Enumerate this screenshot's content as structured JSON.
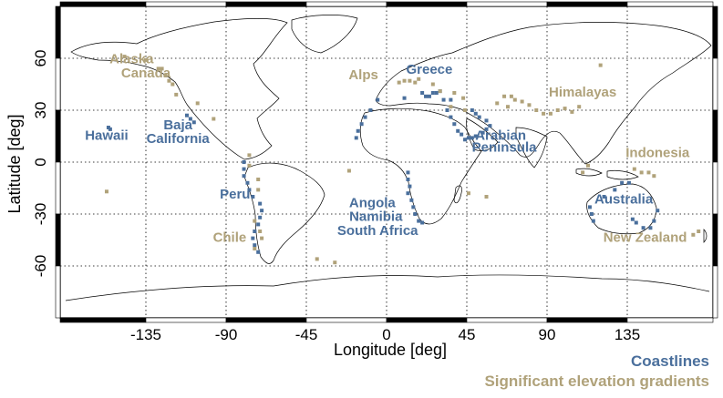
{
  "chart_data": {
    "type": "map",
    "projection": "equirectangular",
    "xlabel": "Longitude [deg]",
    "ylabel": "Latitude [deg]",
    "xlim": [
      -180,
      180
    ],
    "ylim": [
      -90,
      90
    ],
    "xticks": [
      -135,
      -90,
      -45,
      0,
      45,
      90,
      135
    ],
    "yticks": [
      60,
      30,
      0,
      -30,
      -60
    ],
    "x_tick_labels": [
      "-135",
      "-90",
      "-45",
      "0",
      "45",
      "90",
      "135"
    ],
    "y_tick_labels": [
      "60",
      "30",
      "0",
      "-30",
      "-60"
    ],
    "grid": true,
    "legend_placement": "bottom-right",
    "series": [
      {
        "name": "Coastlines",
        "color": "#4a6f9c",
        "labels": [
          {
            "text": "Greece",
            "lon": 24,
            "lat": 51
          },
          {
            "text": "Hawaii",
            "lon": -157,
            "lat": 13
          },
          {
            "text": "Baja",
            "lon": -117,
            "lat": 19
          },
          {
            "text": "California",
            "lon": -117,
            "lat": 11
          },
          {
            "text": "Arabian",
            "lon": 64,
            "lat": 13
          },
          {
            "text": "Peninsula",
            "lon": 66,
            "lat": 6
          },
          {
            "text": "Peru",
            "lon": -85,
            "lat": -21
          },
          {
            "text": "Angola",
            "lon": -8,
            "lat": -26
          },
          {
            "text": "Namibia",
            "lon": -6,
            "lat": -34
          },
          {
            "text": "South Africa",
            "lon": -5,
            "lat": -42
          },
          {
            "text": "Australia",
            "lon": 133,
            "lat": -24
          }
        ],
        "cells": [
          [
            -156,
            20
          ],
          [
            -155,
            19
          ],
          [
            -112,
            27
          ],
          [
            -110,
            25
          ],
          [
            -108,
            23
          ],
          [
            -80,
            -4
          ],
          [
            -80,
            0
          ],
          [
            -80,
            -8
          ],
          [
            -78,
            -12
          ],
          [
            -77,
            -16
          ],
          [
            -75,
            -20
          ],
          [
            -71,
            -24
          ],
          [
            -70,
            -28
          ],
          [
            -71,
            -32
          ],
          [
            -72,
            -36
          ],
          [
            -74,
            -40
          ],
          [
            -75,
            -44
          ],
          [
            -74,
            -48
          ],
          [
            -72,
            -52
          ],
          [
            -5,
            36
          ],
          [
            -9,
            30
          ],
          [
            -12,
            26
          ],
          [
            -14,
            22
          ],
          [
            -16,
            18
          ],
          [
            -17,
            14
          ],
          [
            10,
            37
          ],
          [
            20,
            40
          ],
          [
            22,
            38
          ],
          [
            24,
            38
          ],
          [
            26,
            40
          ],
          [
            28,
            40
          ],
          [
            30,
            41
          ],
          [
            32,
            36
          ],
          [
            36,
            36
          ],
          [
            34,
            30
          ],
          [
            36,
            26
          ],
          [
            38,
            22
          ],
          [
            40,
            18
          ],
          [
            42,
            16
          ],
          [
            44,
            13
          ],
          [
            46,
            14
          ],
          [
            48,
            14
          ],
          [
            50,
            15
          ],
          [
            54,
            17
          ],
          [
            56,
            19
          ],
          [
            58,
            21
          ],
          [
            56,
            24
          ],
          [
            52,
            26
          ],
          [
            50,
            28
          ],
          [
            48,
            30
          ],
          [
            12,
            -6
          ],
          [
            12,
            -10
          ],
          [
            13,
            -14
          ],
          [
            12,
            -18
          ],
          [
            14,
            -22
          ],
          [
            15,
            -26
          ],
          [
            16,
            -30
          ],
          [
            18,
            -34
          ],
          [
            20,
            -35
          ],
          [
            116,
            -34
          ],
          [
            115,
            -30
          ],
          [
            114,
            -26
          ],
          [
            122,
            -20
          ],
          [
            128,
            -16
          ],
          [
            132,
            -12
          ],
          [
            136,
            -12
          ],
          [
            138,
            -33
          ],
          [
            140,
            -35
          ],
          [
            144,
            -38
          ],
          [
            148,
            -38
          ],
          [
            150,
            -34
          ],
          [
            152,
            -28
          ]
        ]
      },
      {
        "name": "Significant elevation gradients",
        "color": "#b0a27a",
        "labels": [
          {
            "text": "Alaska",
            "lon": -143,
            "lat": 57
          },
          {
            "text": "Canada",
            "lon": -135,
            "lat": 49
          },
          {
            "text": "Alps",
            "lon": -13,
            "lat": 48
          },
          {
            "text": "Himalayas",
            "lon": 110,
            "lat": 38
          },
          {
            "text": "Indonesia",
            "lon": 152,
            "lat": 3
          },
          {
            "text": "Chile",
            "lon": -88,
            "lat": -46
          },
          {
            "text": "New Zealand",
            "lon": 145,
            "lat": -46
          }
        ],
        "cells": [
          [
            -147,
            61
          ],
          [
            -135,
            59
          ],
          [
            -128,
            54
          ],
          [
            -126,
            54
          ],
          [
            -124,
            50
          ],
          [
            -122,
            47
          ],
          [
            -120,
            45
          ],
          [
            -118,
            39
          ],
          [
            -106,
            34
          ],
          [
            -97,
            25
          ],
          [
            -157,
            -17
          ],
          [
            -77,
            4
          ],
          [
            -77,
            -2
          ],
          [
            -72,
            -10
          ],
          [
            -72,
            -16
          ],
          [
            -74,
            -34
          ],
          [
            -71,
            -40
          ],
          [
            -70,
            -44
          ],
          [
            -74,
            -50
          ],
          [
            -39,
            -56
          ],
          [
            -29,
            -58
          ],
          [
            -21,
            -5
          ],
          [
            7,
            46
          ],
          [
            10,
            47
          ],
          [
            13,
            47
          ],
          [
            16,
            46
          ],
          [
            18,
            48
          ],
          [
            26,
            45
          ],
          [
            30,
            41
          ],
          [
            38,
            40
          ],
          [
            43,
            37
          ],
          [
            36,
            32
          ],
          [
            44,
            30
          ],
          [
            46,
            -18
          ],
          [
            56,
            -20
          ],
          [
            66,
            38
          ],
          [
            70,
            38
          ],
          [
            72,
            36
          ],
          [
            76,
            35
          ],
          [
            80,
            33
          ],
          [
            84,
            30
          ],
          [
            88,
            28
          ],
          [
            92,
            28
          ],
          [
            96,
            30
          ],
          [
            100,
            31
          ],
          [
            104,
            29
          ],
          [
            108,
            32
          ],
          [
            62,
            34
          ],
          [
            68,
            32
          ],
          [
            110,
            -6
          ],
          [
            113,
            -2
          ],
          [
            120,
            56
          ],
          [
            139,
            -4
          ],
          [
            143,
            -6
          ],
          [
            147,
            -6
          ],
          [
            150,
            -8
          ],
          [
            172,
            -42
          ],
          [
            175,
            -40
          ]
        ]
      }
    ]
  }
}
